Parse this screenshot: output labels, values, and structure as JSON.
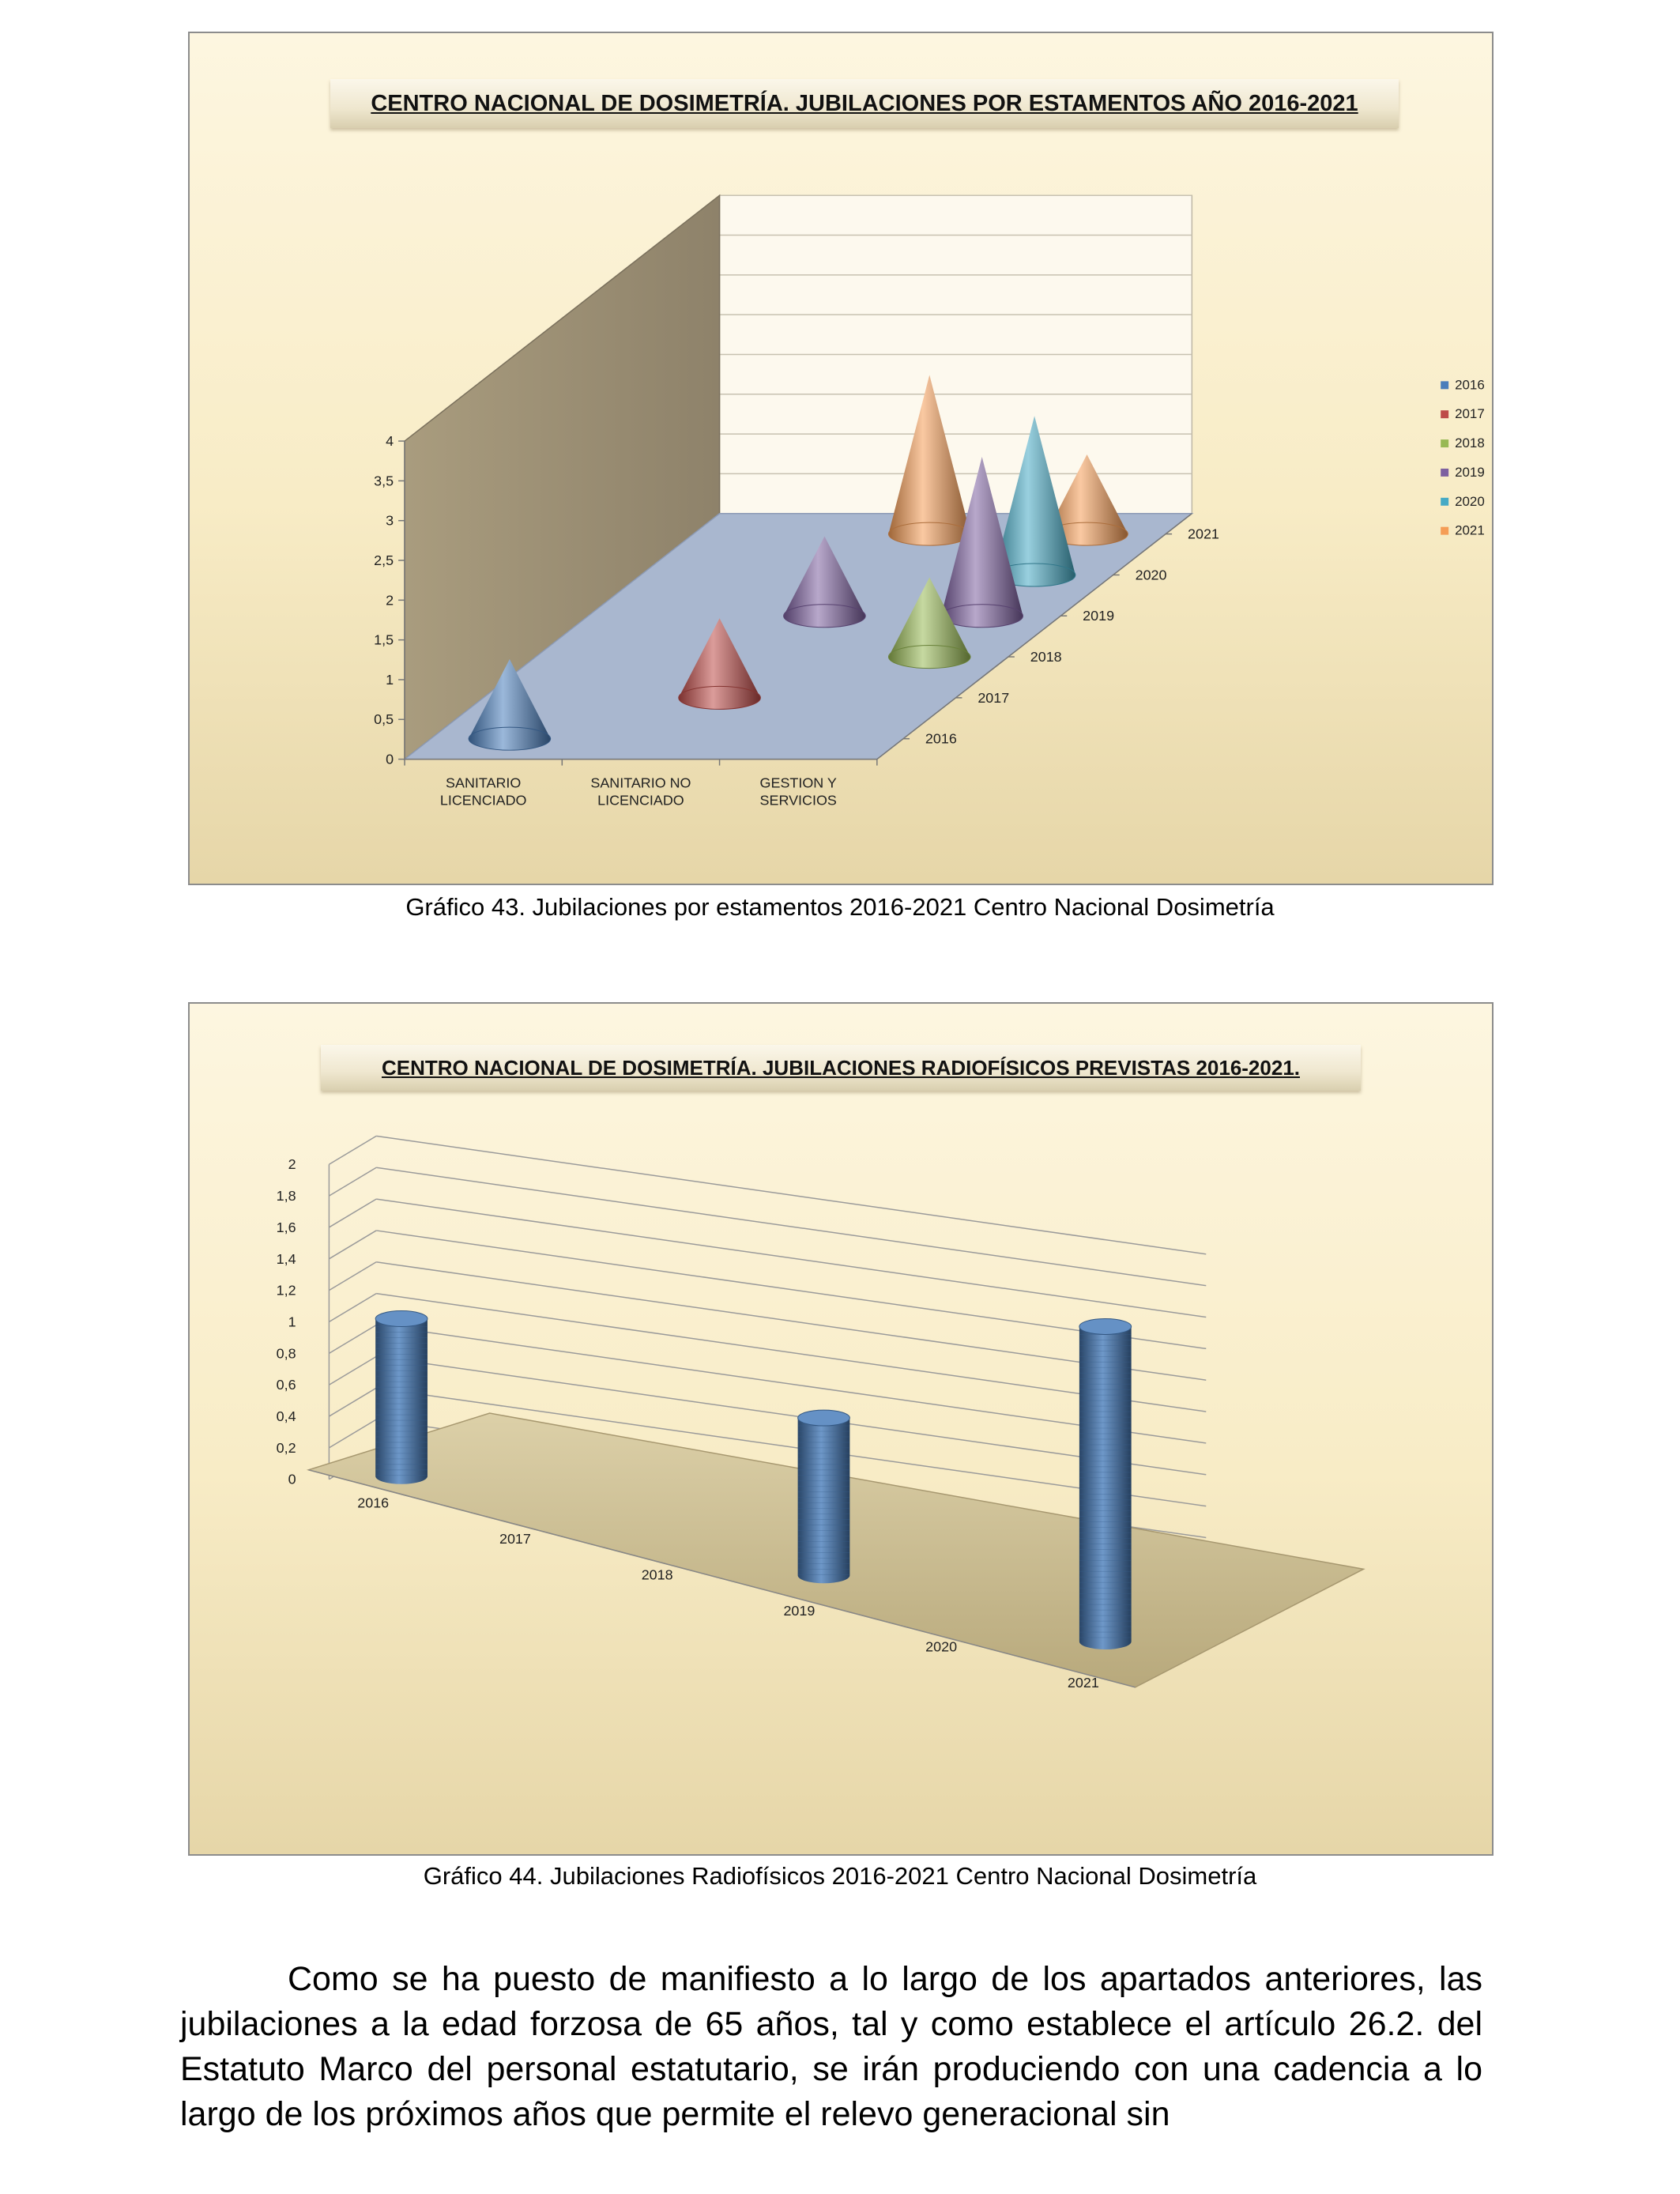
{
  "chart_data": [
    {
      "type": "bar",
      "variant": "3d-cone",
      "title": "CENTRO NACIONAL DE DOSIMETRÍA. JUBILACIONES POR ESTAMENTOS AÑO 2016-2021",
      "categories": [
        "SANITARIO LICENCIADO",
        "SANITARIO NO LICENCIADO",
        "GESTION Y SERVICIOS"
      ],
      "depth_labels": [
        "2016",
        "2017",
        "2018",
        "2019",
        "2020",
        "2021"
      ],
      "y_ticks": [
        "0",
        "0,5",
        "1",
        "1,5",
        "2",
        "2,5",
        "3",
        "3,5",
        "4"
      ],
      "ylim": [
        0,
        4
      ],
      "legend": "right",
      "series": [
        {
          "name": "2016",
          "color": "#4a7ebb",
          "values": [
            1,
            0,
            0
          ]
        },
        {
          "name": "2017",
          "color": "#be4b48",
          "values": [
            0,
            1,
            0
          ]
        },
        {
          "name": "2018",
          "color": "#98b954",
          "values": [
            0,
            0,
            1
          ]
        },
        {
          "name": "2019",
          "color": "#7d60a0",
          "values": [
            0,
            1,
            2
          ]
        },
        {
          "name": "2020",
          "color": "#46aac5",
          "values": [
            0,
            0,
            2
          ]
        },
        {
          "name": "2021",
          "color": "#f59d56",
          "values": [
            0,
            2,
            1
          ]
        }
      ]
    },
    {
      "type": "bar",
      "variant": "3d-cylinder",
      "title": "CENTRO NACIONAL DE DOSIMETRÍA. JUBILACIONES RADIOFÍSICOS PREVISTAS 2016-2021.",
      "categories": [
        "2016",
        "2017",
        "2018",
        "2019",
        "2020",
        "2021"
      ],
      "values": [
        1,
        0,
        0,
        1,
        0,
        2
      ],
      "y_ticks": [
        "0",
        "0,2",
        "0,4",
        "0,6",
        "0,8",
        "1",
        "1,2",
        "1,4",
        "1,6",
        "1,8",
        "2"
      ],
      "ylim": [
        0,
        2
      ],
      "bar_color": "#4a7ebb"
    }
  ],
  "captions": {
    "chart1": "Gráfico 43. Jubilaciones por estamentos 2016-2021 Centro Nacional Dosimetría",
    "chart2": "Gráfico 44. Jubilaciones Radiofísicos 2016-2021 Centro Nacional Dosimetría"
  },
  "body": {
    "paragraph": "Como se ha puesto de manifiesto a lo largo de los apartados anteriores, las jubilaciones a la edad forzosa de 65 años, tal y como establece el artículo 26.2. del Estatuto Marco del personal estatutario, se irán produciendo con una cadencia a lo largo de los próximos años que permite el relevo generacional sin"
  }
}
